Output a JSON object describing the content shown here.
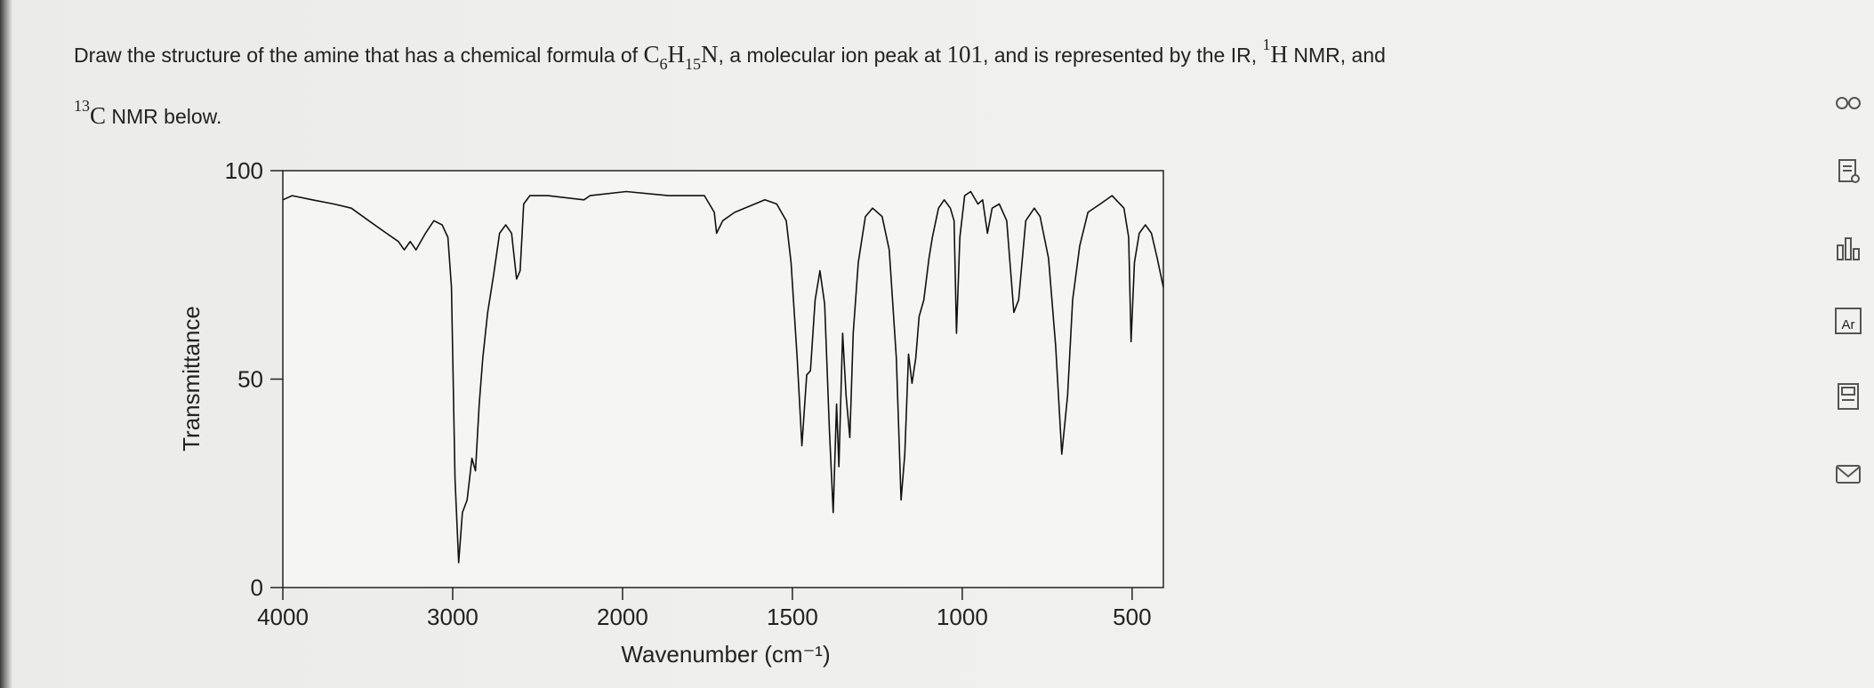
{
  "question": {
    "runs": [
      "Draw the structure of the amine that has a chemical formula of ",
      "C",
      "6",
      "H",
      "15",
      "N",
      ", a molecular ion peak at ",
      "101",
      ", and is represented by the IR, ",
      "1",
      "H",
      " NMR, and",
      "13",
      "C",
      " NMR below."
    ]
  },
  "sidebar": {
    "element": "Ar"
  },
  "chart_data": {
    "type": "line",
    "xlabel": "Wavenumber (cm⁻¹)",
    "ylabel": "Transmittance",
    "color": "#111111",
    "xlim": [
      4000,
      408
    ],
    "ylim": [
      0,
      100
    ],
    "xticks": [
      4000,
      3000,
      2000,
      1500,
      1000,
      500
    ],
    "yticks": [
      0,
      50,
      100
    ],
    "x": [
      4000,
      3945,
      3826,
      3700,
      3597,
      3494,
      3390,
      3320,
      3285,
      3250,
      3216,
      3160,
      3111,
      3062,
      3028,
      3007,
      2986,
      2965,
      2943,
      2915,
      2887,
      2866,
      2844,
      2823,
      2794,
      2759,
      2724,
      2688,
      2653,
      2624,
      2603,
      2582,
      2546,
      2440,
      2227,
      2192,
      1989,
      1865,
      1759,
      1730,
      1723,
      1705,
      1670,
      1581,
      1546,
      1518,
      1504,
      1486,
      1472,
      1458,
      1447,
      1433,
      1419,
      1405,
      1391,
      1380,
      1370,
      1363,
      1352,
      1342,
      1331,
      1321,
      1306,
      1285,
      1264,
      1236,
      1215,
      1194,
      1180,
      1169,
      1158,
      1148,
      1137,
      1127,
      1113,
      1098,
      1088,
      1070,
      1053,
      1035,
      1024,
      1017,
      1007,
      993,
      975,
      954,
      940,
      926,
      912,
      891,
      869,
      848,
      834,
      813,
      788,
      771,
      746,
      725,
      707,
      690,
      675,
      654,
      630,
      594,
      559,
      524,
      510,
      503,
      493,
      479,
      461,
      443,
      426,
      408
    ],
    "values": [
      93,
      94,
      93,
      92,
      91,
      88,
      85,
      83,
      81,
      83,
      81,
      85,
      88,
      87,
      84,
      72,
      26,
      6,
      18,
      21,
      31,
      28,
      44,
      55,
      66,
      75,
      85,
      87,
      85,
      74,
      76,
      92,
      94,
      94,
      93,
      94,
      95,
      94,
      94,
      90,
      85,
      88,
      90,
      93,
      92,
      88,
      78,
      55,
      34,
      51,
      52,
      69,
      76,
      68,
      38,
      18,
      44,
      29,
      61,
      46,
      36,
      61,
      78,
      89,
      91,
      89,
      81,
      55,
      21,
      32,
      56,
      49,
      55,
      65,
      69,
      79,
      84,
      91,
      93,
      91,
      88,
      61,
      84,
      94,
      95,
      92,
      93,
      85,
      91,
      92,
      88,
      66,
      69,
      88,
      91,
      89,
      79,
      58,
      32,
      46,
      69,
      82,
      90,
      92,
      94,
      91,
      84,
      59,
      78,
      85,
      87,
      85,
      79,
      72
    ]
  }
}
